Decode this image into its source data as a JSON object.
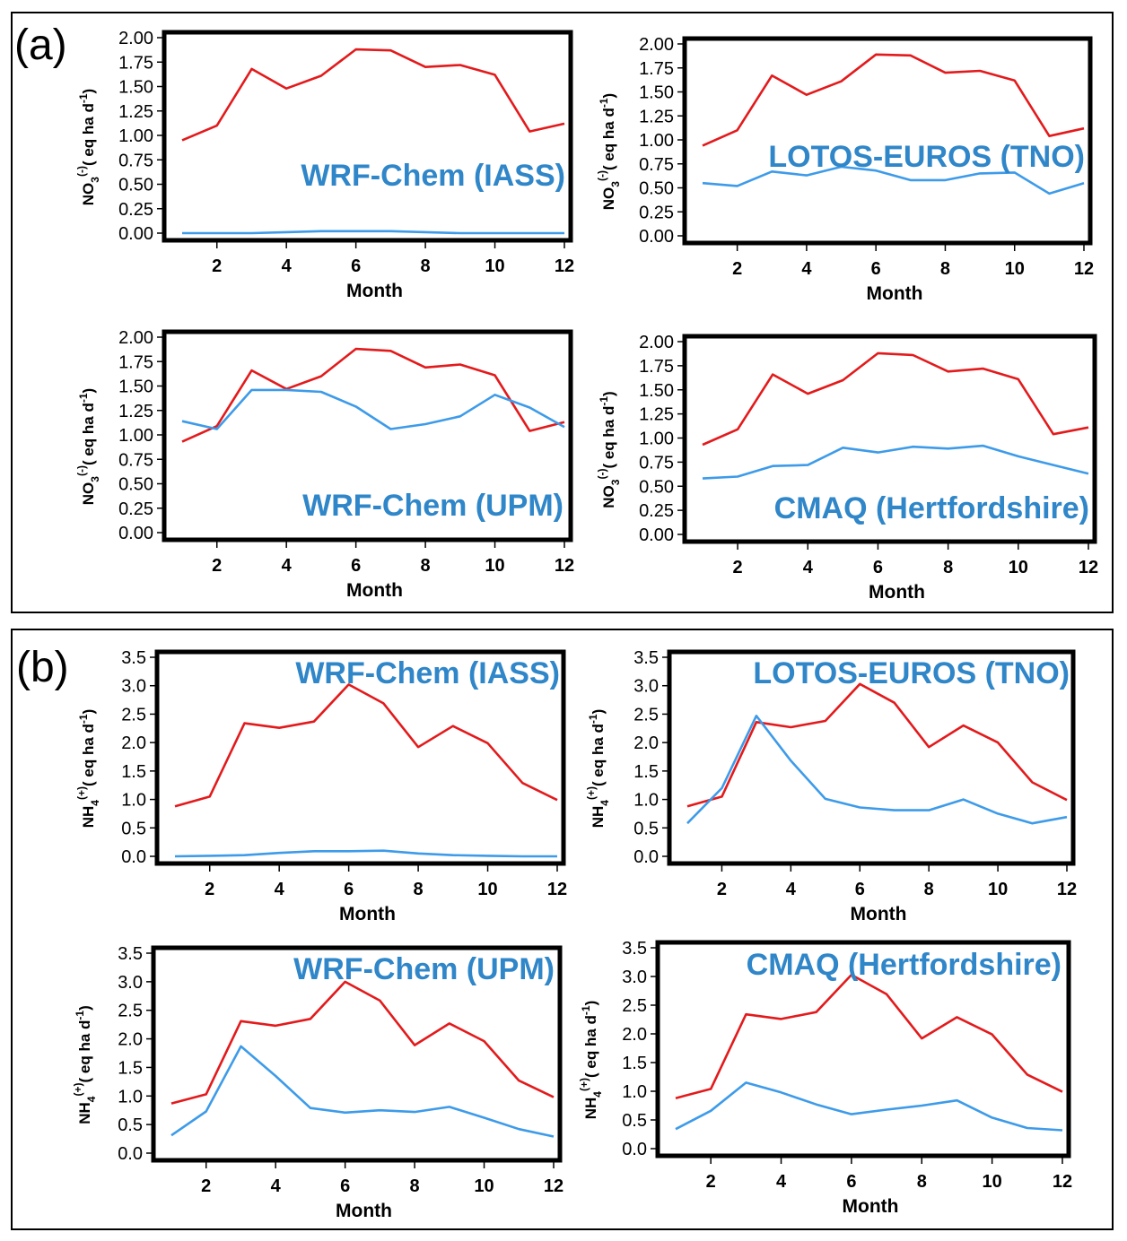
{
  "panels": [
    {
      "label": "(a)"
    },
    {
      "label": "(b)"
    }
  ],
  "colors": {
    "observed": "#e31a1c",
    "model": "#3d9be9",
    "title": "#2f86c8"
  },
  "chart_data": [
    {
      "type": "line",
      "panel": "(a)",
      "title": "WRF-Chem (IASS)",
      "xlabel": "Month",
      "ylabel_base": "NO",
      "ylabel_sub": "3",
      "ylabel_sup": "(-)",
      "ylabel_rest": "( eq ha d",
      "ylabel_sup2": "-1",
      "ylabel_end": ")",
      "x": [
        1,
        2,
        3,
        4,
        5,
        6,
        7,
        8,
        9,
        10,
        11,
        12
      ],
      "xticks": [
        "2",
        "4",
        "6",
        "8",
        "10",
        "12"
      ],
      "ylim": [
        0,
        2
      ],
      "yticks": [
        "0.00",
        "0.25",
        "0.50",
        "0.75",
        "1.00",
        "1.25",
        "1.50",
        "1.75",
        "2.00"
      ],
      "series": [
        {
          "color": "#e31a1c",
          "values": [
            0.95,
            1.1,
            1.68,
            1.48,
            1.61,
            1.88,
            1.87,
            1.7,
            1.72,
            1.62,
            1.04,
            1.12
          ]
        },
        {
          "color": "#3d9be9",
          "values": [
            0.0,
            0.0,
            0.0,
            0.01,
            0.02,
            0.02,
            0.02,
            0.01,
            0.0,
            0.0,
            0.0,
            0.0
          ]
        }
      ]
    },
    {
      "type": "line",
      "panel": "(a)",
      "title": "LOTOS-EUROS (TNO)",
      "xlabel": "Month",
      "ylabel_base": "NO",
      "ylabel_sub": "3",
      "ylabel_sup": "(-)",
      "ylabel_rest": "( eq ha d",
      "ylabel_sup2": "-1",
      "ylabel_end": ")",
      "x": [
        1,
        2,
        3,
        4,
        5,
        6,
        7,
        8,
        9,
        10,
        11,
        12
      ],
      "xticks": [
        "2",
        "4",
        "6",
        "8",
        "10",
        "12"
      ],
      "ylim": [
        0,
        2
      ],
      "yticks": [
        "0.00",
        "0.25",
        "0.50",
        "0.75",
        "1.00",
        "1.25",
        "1.50",
        "1.75",
        "2.00"
      ],
      "series": [
        {
          "color": "#e31a1c",
          "values": [
            0.94,
            1.1,
            1.67,
            1.47,
            1.61,
            1.89,
            1.88,
            1.7,
            1.72,
            1.62,
            1.04,
            1.12
          ]
        },
        {
          "color": "#3d9be9",
          "values": [
            0.55,
            0.52,
            0.67,
            0.63,
            0.72,
            0.68,
            0.58,
            0.58,
            0.65,
            0.66,
            0.44,
            0.55
          ]
        }
      ]
    },
    {
      "type": "line",
      "panel": "(a)",
      "title": "WRF-Chem (UPM)",
      "xlabel": "Month",
      "ylabel_base": "NO",
      "ylabel_sub": "3",
      "ylabel_sup": "(-)",
      "ylabel_rest": "( eq ha d",
      "ylabel_sup2": "-1",
      "ylabel_end": ")",
      "x": [
        1,
        2,
        3,
        4,
        5,
        6,
        7,
        8,
        9,
        10,
        11,
        12
      ],
      "xticks": [
        "2",
        "4",
        "6",
        "8",
        "10",
        "12"
      ],
      "ylim": [
        0,
        2
      ],
      "yticks": [
        "0.00",
        "0.25",
        "0.50",
        "0.75",
        "1.00",
        "1.25",
        "1.50",
        "1.75",
        "2.00"
      ],
      "series": [
        {
          "color": "#e31a1c",
          "values": [
            0.93,
            1.09,
            1.66,
            1.47,
            1.6,
            1.88,
            1.86,
            1.69,
            1.72,
            1.61,
            1.04,
            1.13
          ]
        },
        {
          "color": "#3d9be9",
          "values": [
            1.14,
            1.06,
            1.46,
            1.46,
            1.44,
            1.29,
            1.06,
            1.11,
            1.19,
            1.41,
            1.28,
            1.08
          ]
        }
      ]
    },
    {
      "type": "line",
      "panel": "(a)",
      "title": "CMAQ (Hertfordshire)",
      "xlabel": "Month",
      "ylabel_base": "NO",
      "ylabel_sub": "3",
      "ylabel_sup": "(-)",
      "ylabel_rest": "( eq ha d",
      "ylabel_sup2": "-1",
      "ylabel_end": ")",
      "x": [
        1,
        2,
        3,
        4,
        5,
        6,
        7,
        8,
        9,
        10,
        11,
        12
      ],
      "xticks": [
        "2",
        "4",
        "6",
        "8",
        "10",
        "12"
      ],
      "ylim": [
        0,
        2
      ],
      "yticks": [
        "0.00",
        "0.25",
        "0.50",
        "0.75",
        "1.00",
        "1.25",
        "1.50",
        "1.75",
        "2.00"
      ],
      "series": [
        {
          "color": "#e31a1c",
          "values": [
            0.93,
            1.09,
            1.66,
            1.46,
            1.6,
            1.88,
            1.86,
            1.69,
            1.72,
            1.61,
            1.04,
            1.11
          ]
        },
        {
          "color": "#3d9be9",
          "values": [
            0.58,
            0.6,
            0.71,
            0.72,
            0.9,
            0.85,
            0.91,
            0.89,
            0.92,
            0.81,
            0.72,
            0.63
          ]
        }
      ]
    },
    {
      "type": "line",
      "panel": "(b)",
      "title": "WRF-Chem (IASS)",
      "xlabel": "Month",
      "ylabel_base": "NH",
      "ylabel_sub": "4",
      "ylabel_sup": "(+)",
      "ylabel_rest": "( eq ha d",
      "ylabel_sup2": "-1",
      "ylabel_end": ")",
      "x": [
        1,
        2,
        3,
        4,
        5,
        6,
        7,
        8,
        9,
        10,
        11,
        12
      ],
      "xticks": [
        "2",
        "4",
        "6",
        "8",
        "10",
        "12"
      ],
      "ylim": [
        0,
        3.5
      ],
      "yticks": [
        "0.0",
        "0.5",
        "1.0",
        "1.5",
        "2.0",
        "2.5",
        "3.0",
        "3.5"
      ],
      "series": [
        {
          "color": "#e31a1c",
          "values": [
            0.88,
            1.05,
            2.34,
            2.26,
            2.37,
            3.02,
            2.69,
            1.92,
            2.29,
            1.99,
            1.29,
            0.99
          ]
        },
        {
          "color": "#3d9be9",
          "values": [
            0.0,
            0.01,
            0.02,
            0.06,
            0.09,
            0.09,
            0.1,
            0.05,
            0.02,
            0.01,
            0.0,
            0.0
          ]
        }
      ]
    },
    {
      "type": "line",
      "panel": "(b)",
      "title": "LOTOS-EUROS (TNO)",
      "xlabel": "Month",
      "ylabel_base": "NH",
      "ylabel_sub": "4",
      "ylabel_sup": "(+)",
      "ylabel_rest": "( eq ha d",
      "ylabel_sup2": "-1",
      "ylabel_end": ")",
      "x": [
        1,
        2,
        3,
        4,
        5,
        6,
        7,
        8,
        9,
        10,
        11,
        12
      ],
      "xticks": [
        "2",
        "4",
        "6",
        "8",
        "10",
        "12"
      ],
      "ylim": [
        0,
        3.5
      ],
      "yticks": [
        "0.0",
        "0.5",
        "1.0",
        "1.5",
        "2.0",
        "2.5",
        "3.0",
        "3.5"
      ],
      "series": [
        {
          "color": "#e31a1c",
          "values": [
            0.88,
            1.05,
            2.36,
            2.27,
            2.38,
            3.03,
            2.7,
            1.92,
            2.3,
            2.0,
            1.3,
            0.99
          ]
        },
        {
          "color": "#3d9be9",
          "values": [
            0.58,
            1.2,
            2.47,
            1.68,
            1.01,
            0.86,
            0.81,
            0.81,
            1.0,
            0.75,
            0.58,
            0.69
          ]
        }
      ]
    },
    {
      "type": "line",
      "panel": "(b)",
      "title": "WRF-Chem (UPM)",
      "xlabel": "Month",
      "ylabel_base": "NH",
      "ylabel_sub": "4",
      "ylabel_sup": "(+)",
      "ylabel_rest": "( eq ha d",
      "ylabel_sup2": "-1",
      "ylabel_end": ")",
      "x": [
        1,
        2,
        3,
        4,
        5,
        6,
        7,
        8,
        9,
        10,
        11,
        12
      ],
      "xticks": [
        "2",
        "4",
        "6",
        "8",
        "10",
        "12"
      ],
      "ylim": [
        0,
        3.5
      ],
      "yticks": [
        "0.0",
        "0.5",
        "1.0",
        "1.5",
        "2.0",
        "2.5",
        "3.0",
        "3.5"
      ],
      "series": [
        {
          "color": "#e31a1c",
          "values": [
            0.87,
            1.03,
            2.31,
            2.23,
            2.35,
            3.0,
            2.67,
            1.89,
            2.27,
            1.96,
            1.27,
            0.98
          ]
        },
        {
          "color": "#3d9be9",
          "values": [
            0.31,
            0.73,
            1.87,
            1.35,
            0.79,
            0.71,
            0.75,
            0.72,
            0.81,
            0.62,
            0.42,
            0.29
          ]
        }
      ]
    },
    {
      "type": "line",
      "panel": "(b)",
      "title": "CMAQ (Hertfordshire)",
      "xlabel": "Month",
      "ylabel_base": "NH",
      "ylabel_sub": "4",
      "ylabel_sup": "(+)",
      "ylabel_rest": "( eq ha d",
      "ylabel_sup2": "-1",
      "ylabel_end": ")",
      "x": [
        1,
        2,
        3,
        4,
        5,
        6,
        7,
        8,
        9,
        10,
        11,
        12
      ],
      "xticks": [
        "2",
        "4",
        "6",
        "8",
        "10",
        "12"
      ],
      "ylim": [
        0,
        3.5
      ],
      "yticks": [
        "0.0",
        "0.5",
        "1.0",
        "1.5",
        "2.0",
        "2.5",
        "3.0",
        "3.5"
      ],
      "series": [
        {
          "color": "#e31a1c",
          "values": [
            0.88,
            1.04,
            2.34,
            2.26,
            2.38,
            3.03,
            2.69,
            1.92,
            2.29,
            1.99,
            1.29,
            0.99
          ]
        },
        {
          "color": "#3d9be9",
          "values": [
            0.34,
            0.66,
            1.15,
            0.98,
            0.77,
            0.6,
            0.68,
            0.75,
            0.84,
            0.54,
            0.36,
            0.32
          ]
        }
      ]
    }
  ]
}
